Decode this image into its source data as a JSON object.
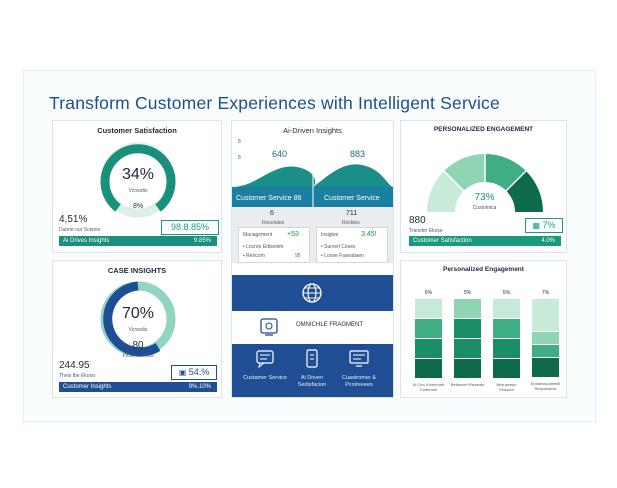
{
  "header": {
    "title": "Transform Customer Experiences with Intelligent Service"
  },
  "card_satisfaction": {
    "title": "Customer Satisfaction",
    "gauge_value": "34%",
    "gauge_fraction": 0.34,
    "gauge_sub": "Vcnsolts",
    "gauge_pct": "8%",
    "stat_value": "4,51%",
    "stat_sub": "Dunne our Scenes",
    "box_value": "98.8.85%",
    "bar_label": "Ai Drives Insights",
    "bar_value": "9.85%"
  },
  "card_case": {
    "title": "CASE INSIGHTS",
    "gauge_value": "70%",
    "gauge_fraction": 0.7,
    "gauge_sub": "Vcnsolts",
    "gauge_num": "80",
    "gauge_num_sub": "Pictureall Ikus",
    "stat_value": "244.95",
    "stat_sub": "Theis Ibe Ekooo",
    "box_value": "54.%",
    "bar_label": "Customer Insights",
    "bar_value": "9%.10%"
  },
  "card_ai": {
    "title": "Ai-Driven Insights",
    "left_num": "640",
    "right_num": "883",
    "axis_top": "8",
    "axis_mid": "8",
    "left_band": "Customer Service 86",
    "right_band": "Customer Service",
    "left_big": "6",
    "left_big_sub": "Rocelutes",
    "right_big": "711",
    "right_big_sub": "Rockles",
    "left_row_label": "Management",
    "left_row_value": "+53",
    "left_item1": "Locnre Edisetien",
    "left_item2": "Rericom",
    "left_item2_value": "95",
    "right_row_label": "Insigtes",
    "right_row_value": "3.45!",
    "right_item1": "Surverl Ceses",
    "right_item2": "Loose Faseatiaen",
    "omni_label": "OMNICHLE FRAGMENT",
    "icons": [
      {
        "label": "Custamer Service"
      },
      {
        "label": "Ai Driven Sedisfacion"
      },
      {
        "label": "Cuastromer & Pcoireeees"
      }
    ]
  },
  "card_personalized": {
    "title": "PERSONALIZED ENGAGEMENT",
    "gauge_value": "73%",
    "gauge_sub": "Customica",
    "stat_value": "880",
    "stat_sub": "Transfer Ekose",
    "box_value": "7%",
    "bar_label": "Customer Satisfaction",
    "bar_value": "4.0%"
  },
  "card_engagement": {
    "title": "Personalized Engagement",
    "columns": [
      {
        "top_label": "6%",
        "bottom_label": "Al Ceo Komeomb Cuatemel"
      },
      {
        "top_label": "5%",
        "bottom_label": "Befeeseb Rieseals"
      },
      {
        "top_label": "5%",
        "bottom_label": "Besuseeon Feisuea"
      },
      {
        "top_label": "7%",
        "bottom_label": "Epiraecsuolerelll Responsess"
      }
    ]
  },
  "colors": {
    "teal": "#1a8f7c",
    "navy": "#1f4e94",
    "light_teal": "#8fd5c1",
    "dark_green": "#0d6b4a"
  },
  "icon_names": [
    "globe-icon",
    "shield-icon",
    "chat-icon",
    "phone-icon",
    "monitor-icon"
  ]
}
